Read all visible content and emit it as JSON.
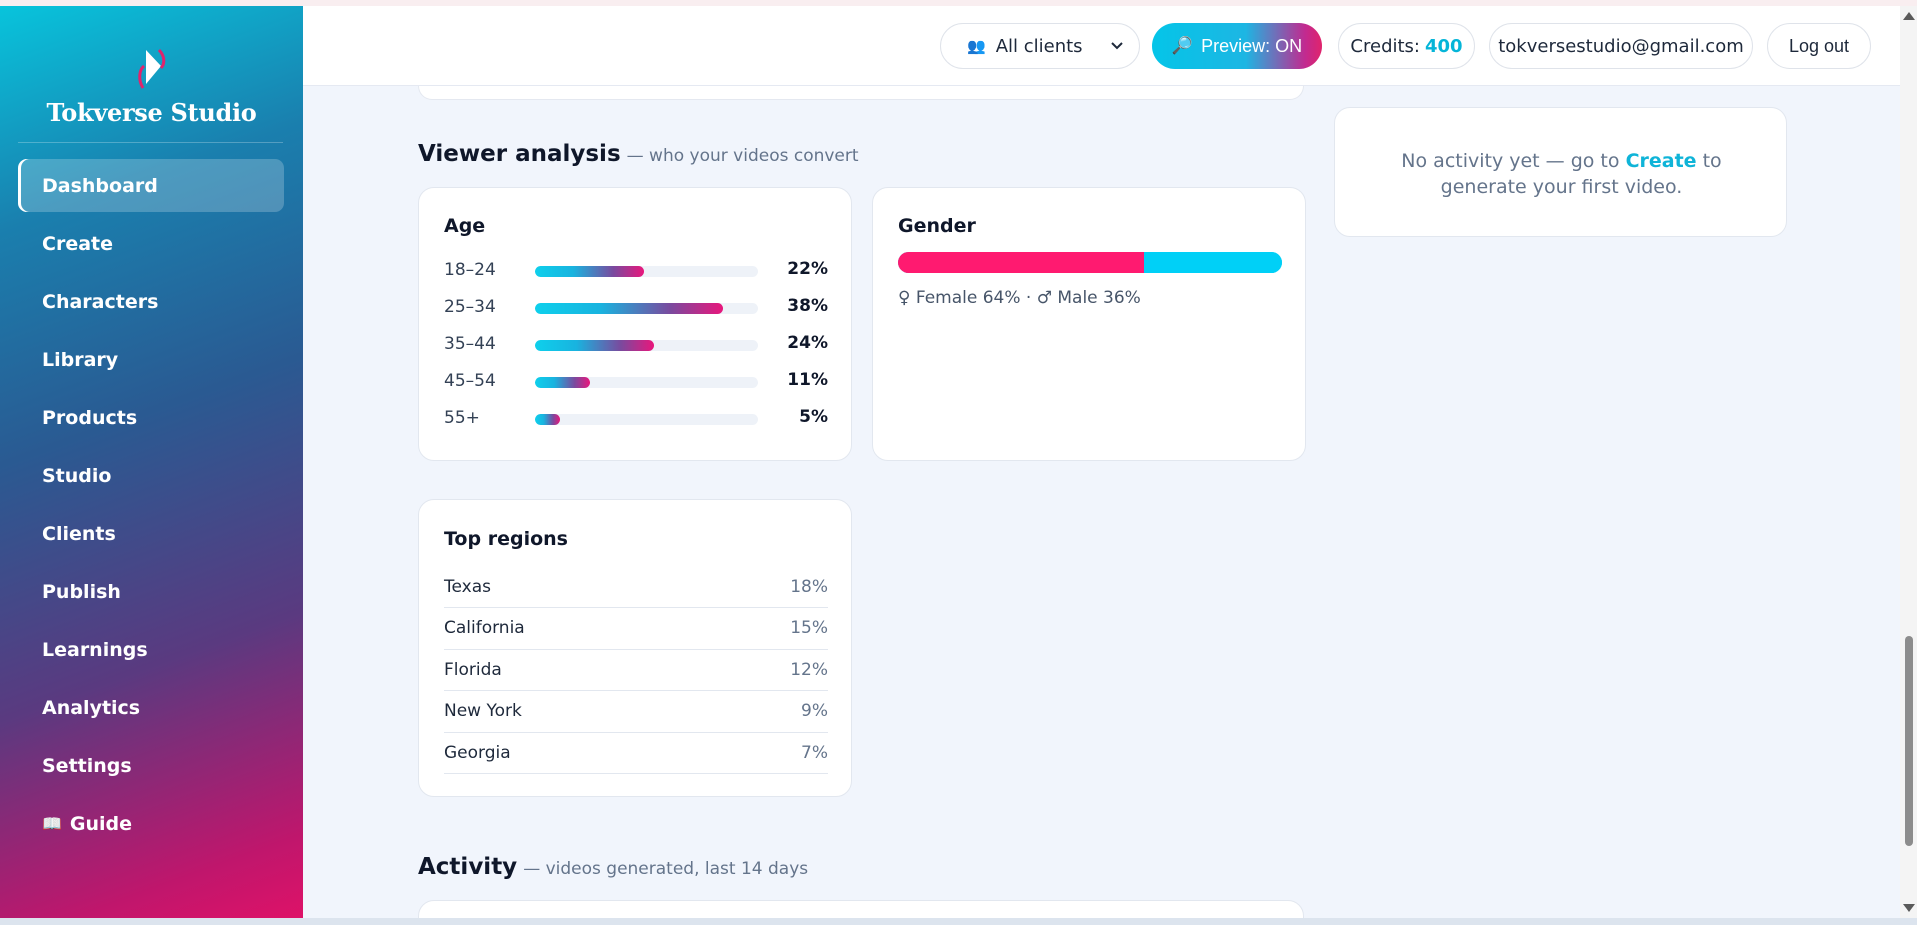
{
  "brand": {
    "name": "Tokverse Studio"
  },
  "sidebar": {
    "items": [
      {
        "label": "Dashboard",
        "active": true
      },
      {
        "label": "Create"
      },
      {
        "label": "Characters"
      },
      {
        "label": "Library"
      },
      {
        "label": "Products"
      },
      {
        "label": "Studio"
      },
      {
        "label": "Clients"
      },
      {
        "label": "Publish"
      },
      {
        "label": "Learnings"
      },
      {
        "label": "Analytics"
      },
      {
        "label": "Settings"
      },
      {
        "label": "Guide",
        "glyph": "📖"
      }
    ]
  },
  "topbar": {
    "client_select": "All clients",
    "preview_label": "Preview: ON",
    "credits_label": "Credits:",
    "credits_value": "400",
    "email": "tokversestudio@gmail.com",
    "logout_label": "Log out"
  },
  "viewer_analysis": {
    "title": "Viewer analysis",
    "subtitle": "— who your videos convert",
    "age": {
      "title": "Age",
      "rows": [
        {
          "label": "18–24",
          "value": "22%",
          "pct": 0.22
        },
        {
          "label": "25–34",
          "value": "38%",
          "pct": 0.38
        },
        {
          "label": "35–44",
          "value": "24%",
          "pct": 0.24
        },
        {
          "label": "45–54",
          "value": "11%",
          "pct": 0.11
        },
        {
          "label": "55+",
          "value": "5%",
          "pct": 0.05
        }
      ]
    },
    "gender": {
      "title": "Gender",
      "female_pct": 0.64,
      "male_pct": 0.36,
      "caption": "♀ Female 64% · ♂ Male 36%"
    },
    "regions": {
      "title": "Top regions",
      "rows": [
        {
          "name": "Texas",
          "value": "18%"
        },
        {
          "name": "California",
          "value": "15%"
        },
        {
          "name": "Florida",
          "value": "12%"
        },
        {
          "name": "New York",
          "value": "9%"
        },
        {
          "name": "Georgia",
          "value": "7%"
        }
      ]
    }
  },
  "recent_activity": {
    "empty_before": "No activity yet — go to ",
    "empty_link": "Create",
    "empty_after": " to generate your first video."
  },
  "activity": {
    "title": "Activity",
    "subtitle": "— videos generated, last 14 days"
  },
  "colors": {
    "accent": "#05b5d8",
    "female": "#ff1a70",
    "male": "#00d0f7"
  }
}
